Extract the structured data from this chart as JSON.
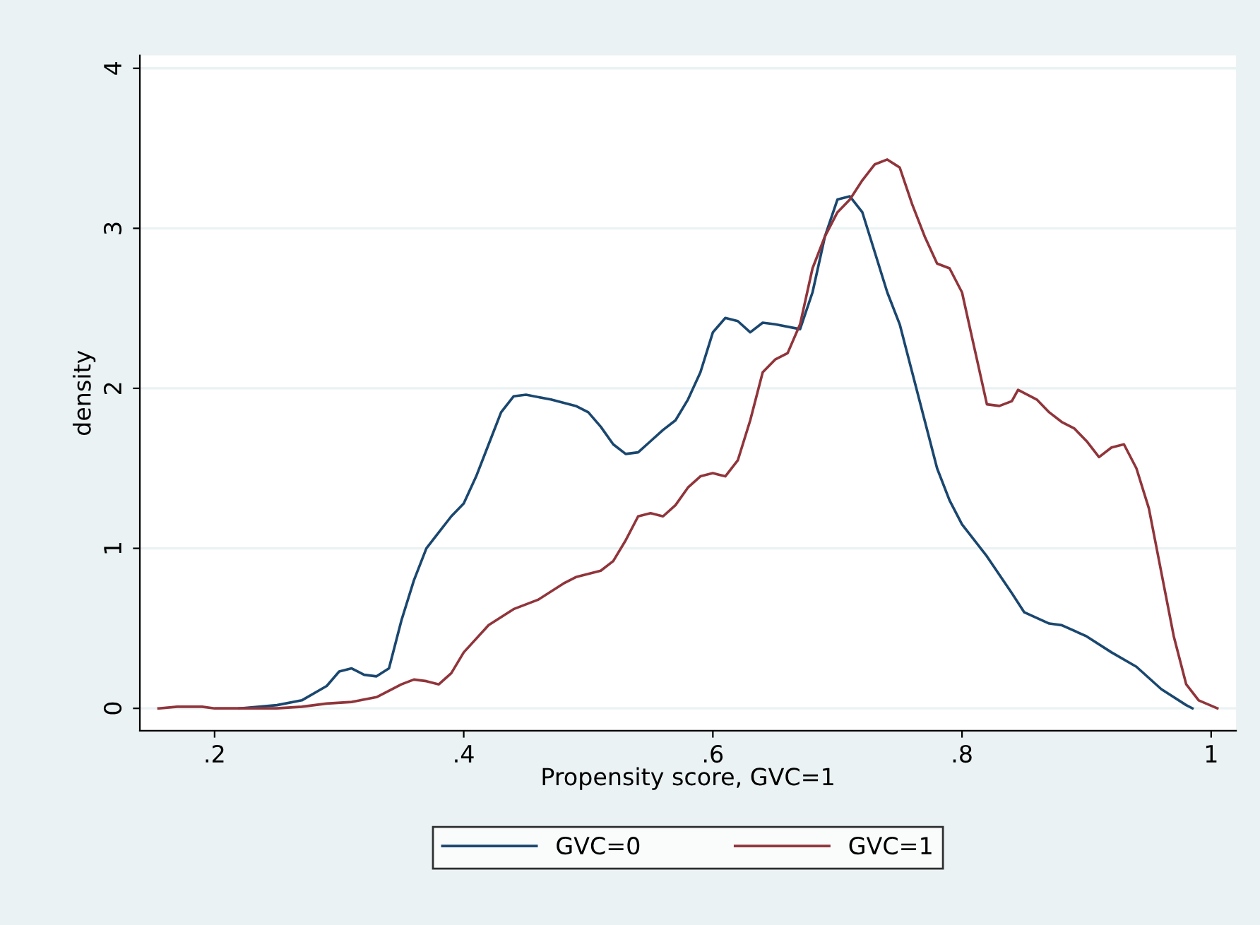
{
  "chart_data": {
    "type": "line",
    "xlabel": "Propensity score, GVC=1",
    "ylabel": "density",
    "xlim": [
      0.14,
      1.02
    ],
    "ylim": [
      -0.14,
      4.08
    ],
    "xticks": [
      {
        "value": 0.2,
        "label": ".2"
      },
      {
        "value": 0.4,
        "label": ".4"
      },
      {
        "value": 0.6,
        "label": ".6"
      },
      {
        "value": 0.8,
        "label": ".8"
      },
      1
    ],
    "yticks": [
      0,
      1,
      2,
      3,
      4
    ],
    "grid": "y",
    "legend": "bottom",
    "marker": "none",
    "line_style": "solid",
    "series": [
      {
        "name": "GVC=0",
        "color": "#1a476f",
        "x": [
          0.22,
          0.25,
          0.27,
          0.29,
          0.3,
          0.31,
          0.32,
          0.33,
          0.34,
          0.35,
          0.36,
          0.37,
          0.38,
          0.39,
          0.4,
          0.41,
          0.42,
          0.43,
          0.44,
          0.45,
          0.47,
          0.49,
          0.5,
          0.51,
          0.52,
          0.53,
          0.54,
          0.55,
          0.56,
          0.57,
          0.58,
          0.59,
          0.6,
          0.61,
          0.62,
          0.63,
          0.64,
          0.65,
          0.67,
          0.68,
          0.69,
          0.7,
          0.71,
          0.72,
          0.73,
          0.74,
          0.75,
          0.76,
          0.77,
          0.78,
          0.79,
          0.8,
          0.82,
          0.84,
          0.85,
          0.87,
          0.88,
          0.9,
          0.92,
          0.94,
          0.96,
          0.98,
          0.985
        ],
        "values": [
          0.0,
          0.02,
          0.05,
          0.14,
          0.23,
          0.25,
          0.21,
          0.2,
          0.25,
          0.55,
          0.8,
          1.0,
          1.1,
          1.2,
          1.28,
          1.45,
          1.65,
          1.85,
          1.95,
          1.96,
          1.93,
          1.89,
          1.85,
          1.76,
          1.65,
          1.59,
          1.6,
          1.67,
          1.74,
          1.8,
          1.93,
          2.1,
          2.35,
          2.44,
          2.42,
          2.35,
          2.41,
          2.4,
          2.37,
          2.6,
          2.95,
          3.18,
          3.2,
          3.1,
          2.85,
          2.6,
          2.4,
          2.1,
          1.8,
          1.5,
          1.3,
          1.15,
          0.95,
          0.72,
          0.6,
          0.53,
          0.52,
          0.45,
          0.35,
          0.26,
          0.12,
          0.02,
          0.0
        ]
      },
      {
        "name": "GVC=1",
        "color": "#90353b",
        "x": [
          0.155,
          0.17,
          0.19,
          0.2,
          0.22,
          0.25,
          0.27,
          0.29,
          0.31,
          0.33,
          0.35,
          0.36,
          0.37,
          0.38,
          0.39,
          0.4,
          0.42,
          0.44,
          0.46,
          0.48,
          0.49,
          0.51,
          0.52,
          0.53,
          0.54,
          0.55,
          0.56,
          0.57,
          0.58,
          0.59,
          0.6,
          0.61,
          0.62,
          0.63,
          0.64,
          0.65,
          0.66,
          0.67,
          0.68,
          0.69,
          0.7,
          0.71,
          0.72,
          0.73,
          0.74,
          0.75,
          0.76,
          0.77,
          0.78,
          0.79,
          0.8,
          0.81,
          0.82,
          0.83,
          0.84,
          0.845,
          0.86,
          0.87,
          0.88,
          0.89,
          0.9,
          0.91,
          0.92,
          0.93,
          0.94,
          0.95,
          0.96,
          0.97,
          0.98,
          0.99,
          1.005
        ],
        "values": [
          0.0,
          0.01,
          0.01,
          0.0,
          0.0,
          0.0,
          0.01,
          0.03,
          0.04,
          0.07,
          0.15,
          0.18,
          0.17,
          0.15,
          0.22,
          0.35,
          0.52,
          0.62,
          0.68,
          0.78,
          0.82,
          0.86,
          0.92,
          1.05,
          1.2,
          1.22,
          1.2,
          1.27,
          1.38,
          1.45,
          1.47,
          1.45,
          1.55,
          1.8,
          2.1,
          2.18,
          2.22,
          2.4,
          2.75,
          2.95,
          3.1,
          3.18,
          3.3,
          3.4,
          3.43,
          3.38,
          3.15,
          2.95,
          2.78,
          2.75,
          2.6,
          2.25,
          1.9,
          1.89,
          1.92,
          1.99,
          1.93,
          1.85,
          1.79,
          1.75,
          1.67,
          1.57,
          1.63,
          1.65,
          1.5,
          1.25,
          0.85,
          0.45,
          0.15,
          0.05,
          0.0
        ]
      }
    ]
  }
}
